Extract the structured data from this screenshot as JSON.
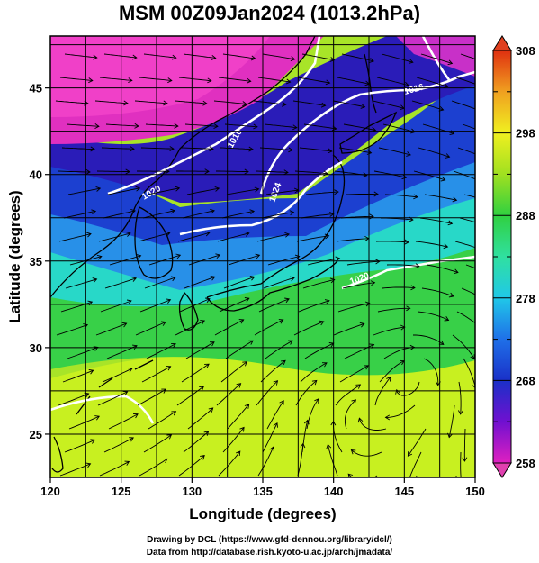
{
  "title": "MSM 00Z09Jan2024 (1013.2hPa)",
  "axes": {
    "xlabel": "Longitude (degrees)",
    "ylabel": "Latitude  (degrees)",
    "x_range": [
      120,
      150
    ],
    "y_range": [
      22.5,
      48
    ],
    "x_ticks": [
      "120",
      "125",
      "130",
      "135",
      "140",
      "145",
      "150"
    ],
    "y_ticks": [
      "25",
      "30",
      "35",
      "40",
      "45"
    ],
    "grid": true
  },
  "colorbar": {
    "range": [
      258,
      308
    ],
    "ticks": [
      "258",
      "268",
      "278",
      "288",
      "298",
      "308"
    ],
    "colors": [
      "#e020c0",
      "#7010d0",
      "#1a30c8",
      "#1f70e8",
      "#20c8e8",
      "#30e0a0",
      "#30d040",
      "#a0e020",
      "#f0f020",
      "#f0a020",
      "#e03010"
    ]
  },
  "contour_labels": [
    "1016",
    "1016",
    "1020",
    "1020",
    "1024"
  ],
  "credits": {
    "line1": "Drawing by DCL (https://www.gfd-dennou.org/library/dcl/)",
    "line2": "Data from http://database.rish.kyoto-u.ac.jp/arch/jmadata/"
  }
}
